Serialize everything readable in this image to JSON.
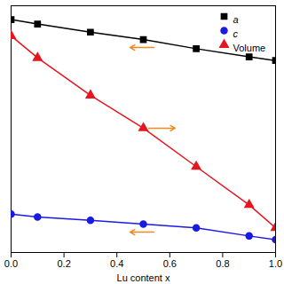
{
  "chart_data": {
    "type": "line",
    "x_label": "Lu content x",
    "x": [
      0,
      0.1,
      0.3,
      0.5,
      0.7,
      0.9,
      1.0
    ],
    "series": [
      {
        "name": "a",
        "color": "#000000",
        "marker": "square",
        "values": [
          94.4,
          92.6,
          89.3,
          86.3,
          82.6,
          79.3,
          77.8
        ]
      },
      {
        "name": "c",
        "color": "#1a1ae6",
        "marker": "circle",
        "values": [
          15.6,
          14.4,
          13.0,
          11.5,
          10.0,
          6.7,
          5.2
        ]
      },
      {
        "name": "Volume",
        "color": "#e8141e",
        "marker": "triangle",
        "axis": "y2",
        "values": [
          87.8,
          78.9,
          63.7,
          50.4,
          34.8,
          19.3,
          10.0
        ]
      }
    ],
    "xlim": [
      0,
      1
    ],
    "xticks": [
      {
        "value": 0,
        "label": "0.0"
      },
      {
        "value": 0.2,
        "label": "0.2"
      },
      {
        "value": 0.4,
        "label": "0.4"
      },
      {
        "value": 0.6,
        "label": "0.6"
      },
      {
        "value": 0.8,
        "label": "0.8"
      },
      {
        "value": 1,
        "label": "1.0"
      }
    ],
    "ylim": [
      0,
      100
    ],
    "y2lim": [
      0,
      100
    ],
    "tick_labels": "x",
    "legend": "top-right"
  }
}
